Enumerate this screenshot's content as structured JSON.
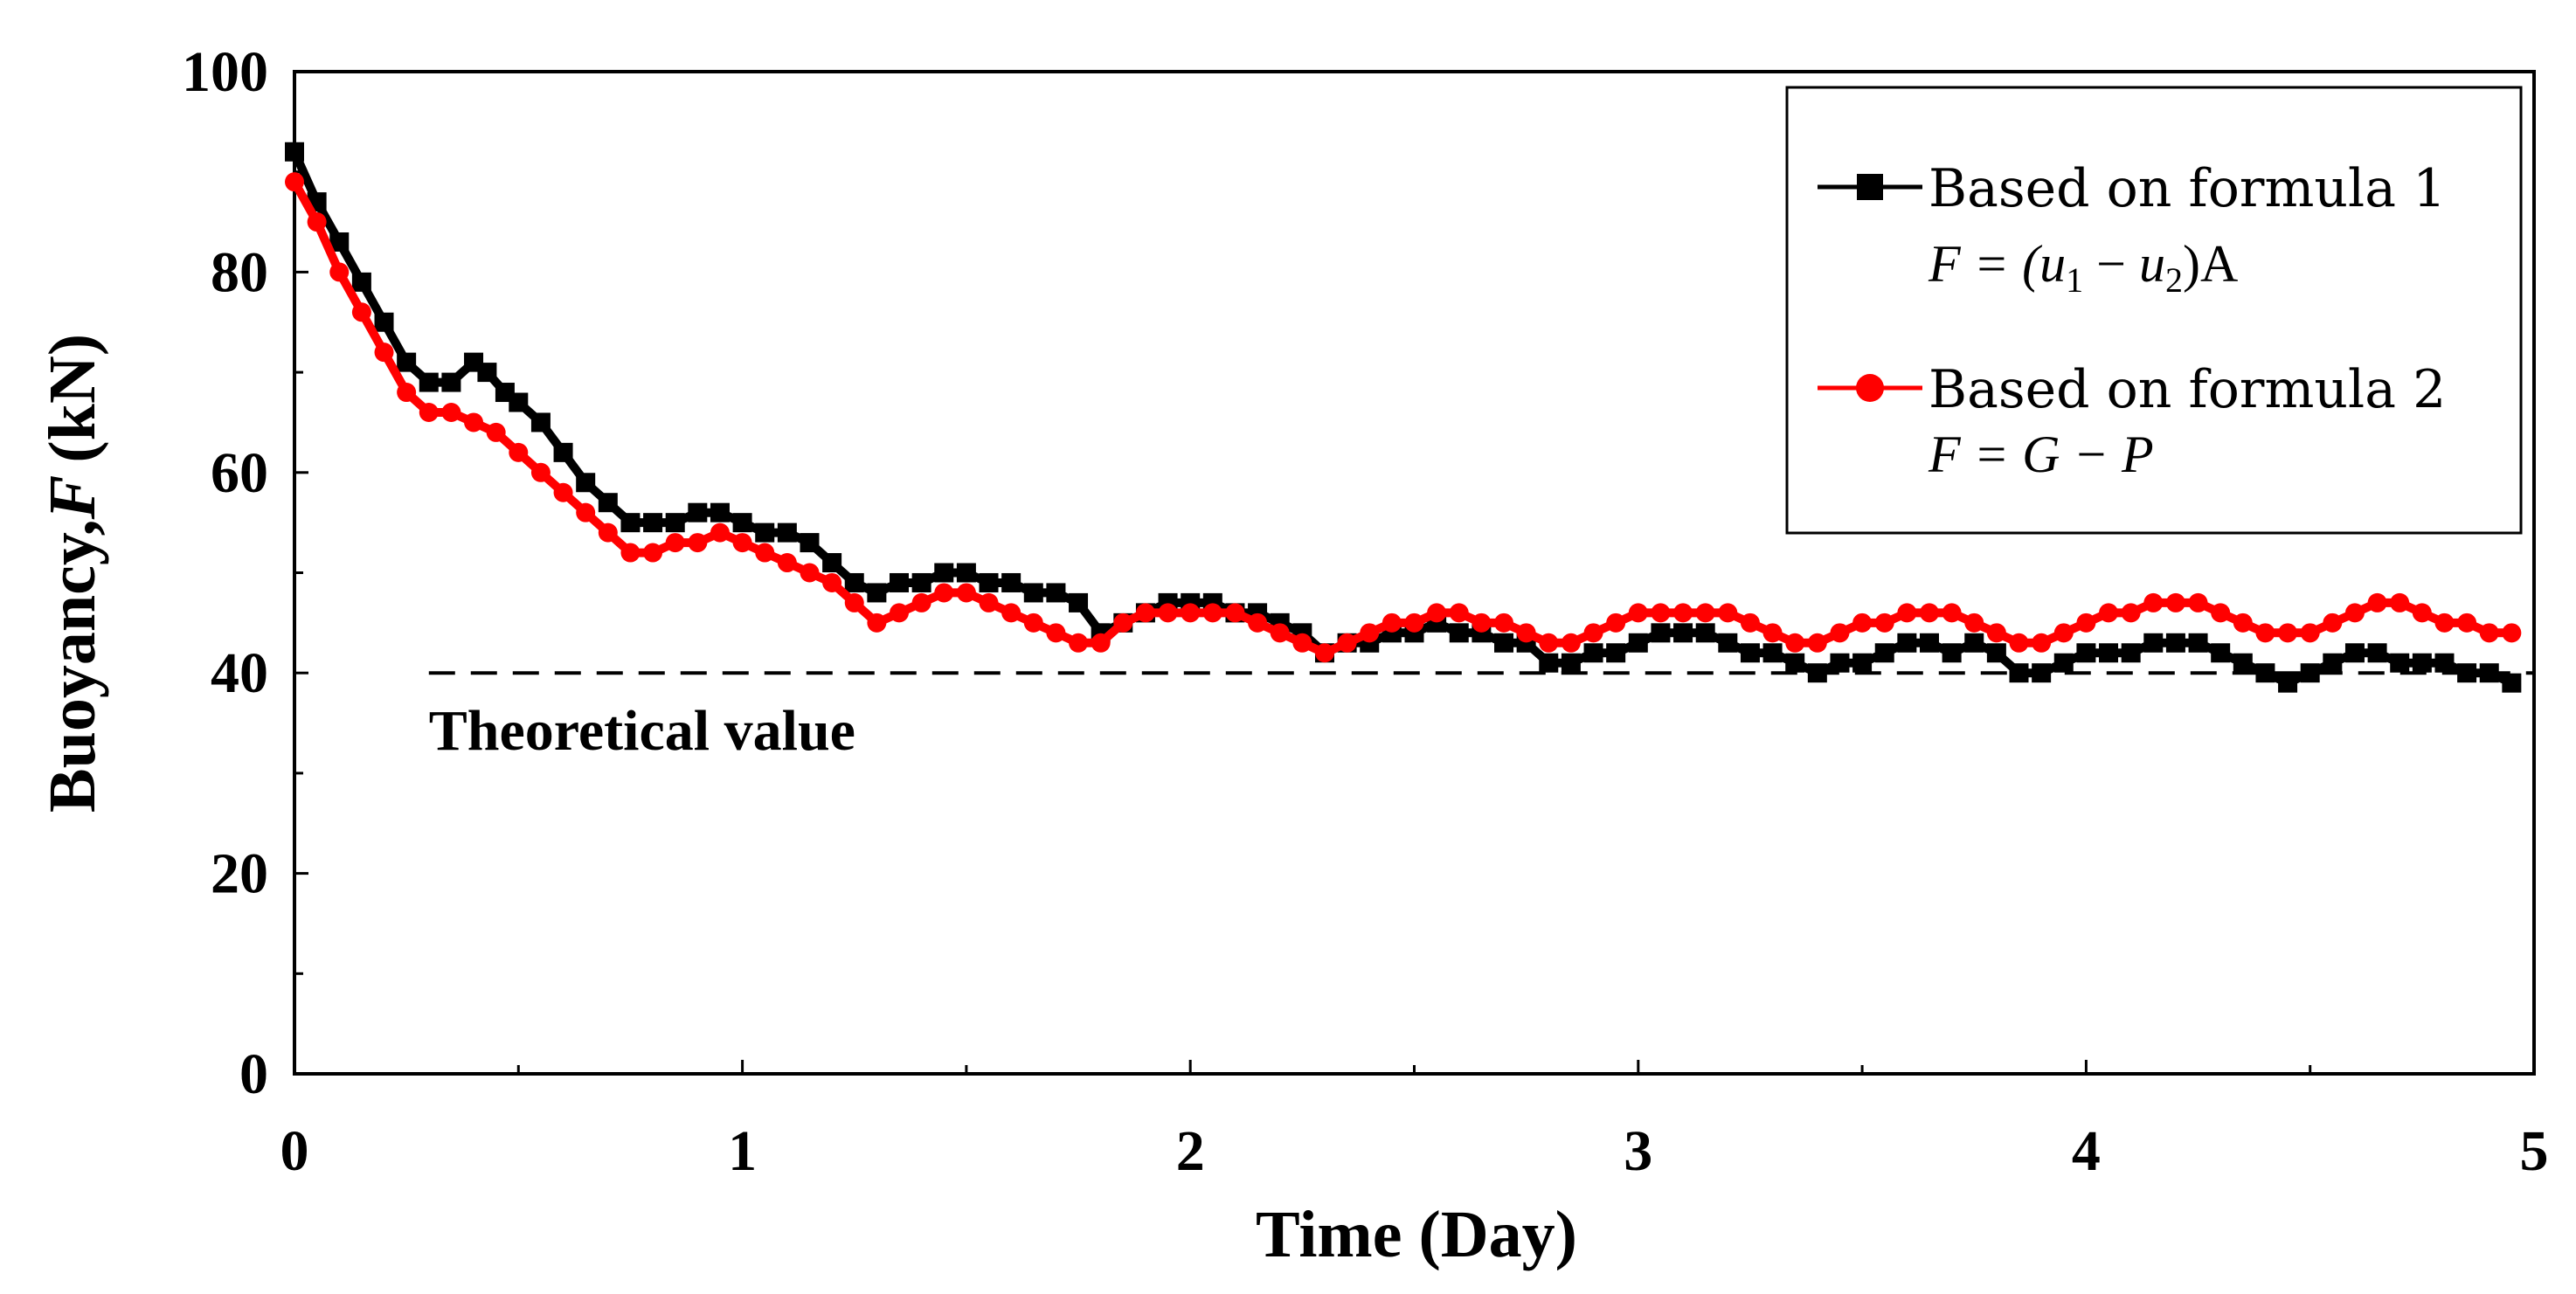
{
  "chart_data": {
    "type": "line",
    "title": "",
    "xlabel": "Time (Day)",
    "ylabel": "Buoyancy,",
    "ylabel_symbol": "F",
    "ylabel_unit": "(kN)",
    "xlim": [
      0,
      5
    ],
    "ylim": [
      0,
      100
    ],
    "x_ticks": [
      0,
      1,
      2,
      3,
      4,
      5
    ],
    "x_tick_labels": [
      "0",
      "1",
      "2",
      "3",
      "4",
      "5"
    ],
    "y_ticks": [
      0,
      20,
      40,
      60,
      80,
      100
    ],
    "y_tick_labels": [
      "0",
      "20",
      "40",
      "60",
      "80",
      "100"
    ],
    "grid": false,
    "legend_position": "top-right",
    "reference_line": {
      "value": 40,
      "x_range": [
        0.3,
        5
      ],
      "style": "dashed",
      "label": "Theoretical value"
    },
    "series": [
      {
        "name": "Based on formula 1",
        "formula_lhs": "F = (",
        "formula_u1": "u",
        "formula_sub1": "1",
        "formula_minus": " − ",
        "formula_u2": "u",
        "formula_sub2": "2",
        "formula_rhs": ")A",
        "color": "#000000",
        "marker": "square",
        "x": [
          0,
          0.05,
          0.1,
          0.15,
          0.2,
          0.25,
          0.3,
          0.35,
          0.4,
          0.43,
          0.47,
          0.5,
          0.55,
          0.6,
          0.65,
          0.7,
          0.75,
          0.8,
          0.85,
          0.9,
          0.95,
          1.0,
          1.05,
          1.1,
          1.15,
          1.2,
          1.25,
          1.3,
          1.35,
          1.4,
          1.45,
          1.5,
          1.55,
          1.6,
          1.65,
          1.7,
          1.75,
          1.8,
          1.85,
          1.9,
          1.95,
          2.0,
          2.05,
          2.1,
          2.15,
          2.2,
          2.25,
          2.3,
          2.35,
          2.4,
          2.45,
          2.5,
          2.55,
          2.6,
          2.65,
          2.7,
          2.75,
          2.8,
          2.85,
          2.9,
          2.95,
          3.0,
          3.05,
          3.1,
          3.15,
          3.2,
          3.25,
          3.3,
          3.35,
          3.4,
          3.45,
          3.5,
          3.55,
          3.6,
          3.65,
          3.7,
          3.75,
          3.8,
          3.85,
          3.9,
          3.95,
          4.0,
          4.05,
          4.1,
          4.15,
          4.2,
          4.25,
          4.3,
          4.35,
          4.4,
          4.45,
          4.5,
          4.55,
          4.6,
          4.65,
          4.7,
          4.75,
          4.8,
          4.85,
          4.9,
          4.95
        ],
        "values": [
          92,
          87,
          83,
          79,
          75,
          71,
          69,
          69,
          71,
          70,
          68,
          67,
          65,
          62,
          59,
          57,
          55,
          55,
          55,
          56,
          56,
          55,
          54,
          54,
          53,
          51,
          49,
          48,
          49,
          49,
          50,
          50,
          49,
          49,
          48,
          48,
          47,
          44,
          45,
          46,
          47,
          47,
          47,
          46,
          46,
          45,
          44,
          42,
          43,
          43,
          44,
          44,
          45,
          44,
          44,
          43,
          43,
          41,
          41,
          42,
          42,
          43,
          44,
          44,
          44,
          43,
          42,
          42,
          41,
          40,
          41,
          41,
          42,
          43,
          43,
          42,
          43,
          42,
          40,
          40,
          41,
          42,
          42,
          42,
          43,
          43,
          43,
          42,
          41,
          40,
          39,
          40,
          41,
          42,
          42,
          41,
          41,
          41,
          40,
          40,
          39
        ]
      },
      {
        "name": "Based on formula 2",
        "formula_lhs": "F",
        "formula_rhs": " = G − P",
        "color": "#ff0000",
        "marker": "circle",
        "x": [
          0,
          0.05,
          0.1,
          0.15,
          0.2,
          0.25,
          0.3,
          0.35,
          0.4,
          0.45,
          0.5,
          0.55,
          0.6,
          0.65,
          0.7,
          0.75,
          0.8,
          0.85,
          0.9,
          0.95,
          1.0,
          1.05,
          1.1,
          1.15,
          1.2,
          1.25,
          1.3,
          1.35,
          1.4,
          1.45,
          1.5,
          1.55,
          1.6,
          1.65,
          1.7,
          1.75,
          1.8,
          1.85,
          1.9,
          1.95,
          2.0,
          2.05,
          2.1,
          2.15,
          2.2,
          2.25,
          2.3,
          2.35,
          2.4,
          2.45,
          2.5,
          2.55,
          2.6,
          2.65,
          2.7,
          2.75,
          2.8,
          2.85,
          2.9,
          2.95,
          3.0,
          3.05,
          3.1,
          3.15,
          3.2,
          3.25,
          3.3,
          3.35,
          3.4,
          3.45,
          3.5,
          3.55,
          3.6,
          3.65,
          3.7,
          3.75,
          3.8,
          3.85,
          3.9,
          3.95,
          4.0,
          4.05,
          4.1,
          4.15,
          4.2,
          4.25,
          4.3,
          4.35,
          4.4,
          4.45,
          4.5,
          4.55,
          4.6,
          4.65,
          4.7,
          4.75,
          4.8,
          4.85,
          4.9,
          4.95
        ],
        "values": [
          89,
          85,
          80,
          76,
          72,
          68,
          66,
          66,
          65,
          64,
          62,
          60,
          58,
          56,
          54,
          52,
          52,
          53,
          53,
          54,
          53,
          52,
          51,
          50,
          49,
          47,
          45,
          46,
          47,
          48,
          48,
          47,
          46,
          45,
          44,
          43,
          43,
          45,
          46,
          46,
          46,
          46,
          46,
          45,
          44,
          43,
          42,
          43,
          44,
          45,
          45,
          46,
          46,
          45,
          45,
          44,
          43,
          43,
          44,
          45,
          46,
          46,
          46,
          46,
          46,
          45,
          44,
          43,
          43,
          44,
          45,
          45,
          46,
          46,
          46,
          45,
          44,
          43,
          43,
          44,
          45,
          46,
          46,
          47,
          47,
          47,
          46,
          45,
          44,
          44,
          44,
          45,
          46,
          47,
          47,
          46,
          45,
          45,
          44,
          44
        ]
      }
    ]
  }
}
